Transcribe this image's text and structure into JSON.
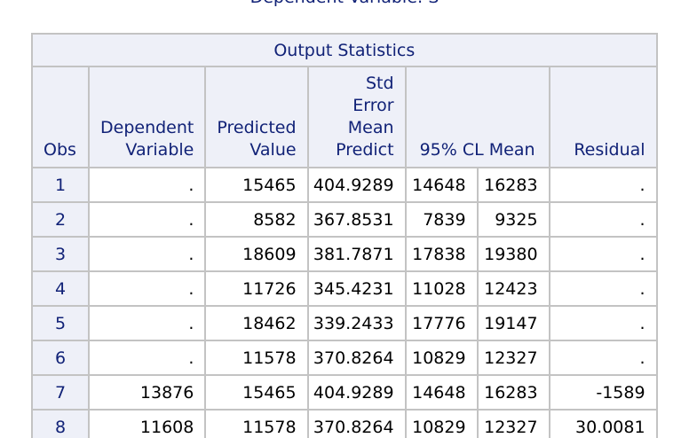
{
  "title": "Dependent Variable: S",
  "table": {
    "caption": "Output Statistics",
    "columns": {
      "obs": "Obs",
      "dep_var": [
        "Dependent",
        "Variable"
      ],
      "predicted": [
        "Predicted",
        "Value"
      ],
      "std_err": [
        "Std",
        "Error",
        "Mean",
        "Predict"
      ],
      "cl_mean": "95% CL Mean",
      "residual": "Residual"
    },
    "rows": [
      {
        "obs": "1",
        "dep": ".",
        "pred": "15465",
        "se": "404.9289",
        "lcl": "14648",
        "ucl": "16283",
        "resid": "."
      },
      {
        "obs": "2",
        "dep": ".",
        "pred": "8582",
        "se": "367.8531",
        "lcl": "7839",
        "ucl": "9325",
        "resid": "."
      },
      {
        "obs": "3",
        "dep": ".",
        "pred": "18609",
        "se": "381.7871",
        "lcl": "17838",
        "ucl": "19380",
        "resid": "."
      },
      {
        "obs": "4",
        "dep": ".",
        "pred": "11726",
        "se": "345.4231",
        "lcl": "11028",
        "ucl": "12423",
        "resid": "."
      },
      {
        "obs": "5",
        "dep": ".",
        "pred": "18462",
        "se": "339.2433",
        "lcl": "17776",
        "ucl": "19147",
        "resid": "."
      },
      {
        "obs": "6",
        "dep": ".",
        "pred": "11578",
        "se": "370.8264",
        "lcl": "10829",
        "ucl": "12327",
        "resid": "."
      },
      {
        "obs": "7",
        "dep": "13876",
        "pred": "15465",
        "se": "404.9289",
        "lcl": "14648",
        "ucl": "16283",
        "resid": "-1589"
      },
      {
        "obs": "8",
        "dep": "11608",
        "pred": "11578",
        "se": "370.8264",
        "lcl": "10829",
        "ucl": "12327",
        "resid": "30.0081"
      }
    ]
  },
  "colors": {
    "header_text": "#112277",
    "header_bg": "#eef0f8",
    "border": "#c3c3c3"
  }
}
